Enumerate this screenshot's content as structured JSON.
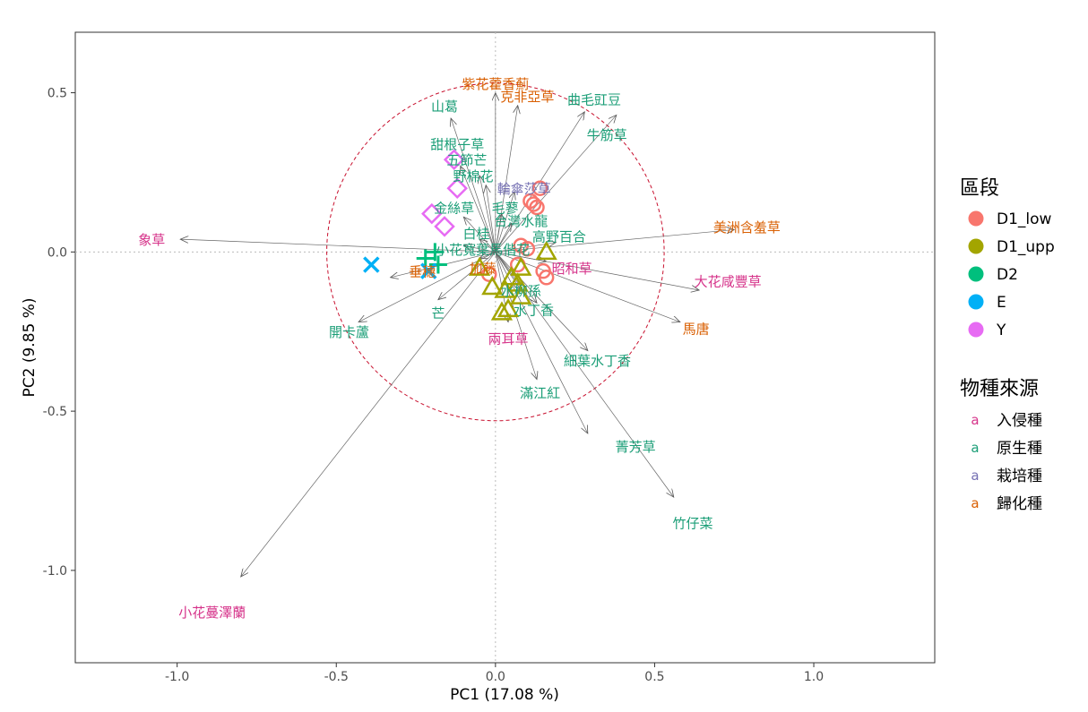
{
  "chart_data": {
    "type": "scatter",
    "subtype": "pca_biplot",
    "xlabel": "PC1 (17.08 %)",
    "ylabel": "PC2 (9.85 %)",
    "xlim": [
      -1.32,
      1.38
    ],
    "ylim": [
      -1.29,
      0.69
    ],
    "x_ticks": [
      -1.0,
      -0.5,
      0.0,
      0.5,
      1.0
    ],
    "y_ticks": [
      0.5,
      0.0,
      -0.5,
      -1.0
    ],
    "x_tick_labels": [
      "-1.0",
      "-0.5",
      "0.0",
      "0.5",
      "1.0"
    ],
    "y_tick_labels": [
      "0.5",
      "0.0",
      "-0.5",
      "-1.0"
    ],
    "circle_radius": 0.53,
    "colors": {
      "D1_low": "#F8766D",
      "D1_upp": "#A3A500",
      "D2": "#00BF7D",
      "E": "#00B0F6",
      "Y": "#E76BF3",
      "invasive": "#D6338A",
      "native": "#1B9E77",
      "cultivated": "#7570B3",
      "naturalized": "#D95F02"
    },
    "legend_groups": {
      "title": "區段",
      "items": [
        {
          "key": "D1_low",
          "label": "D1_low"
        },
        {
          "key": "D1_upp",
          "label": "D1_upp"
        },
        {
          "key": "D2",
          "label": "D2"
        },
        {
          "key": "E",
          "label": "E"
        },
        {
          "key": "Y",
          "label": "Y"
        }
      ]
    },
    "legend_origin": {
      "title": "物種來源",
      "glyph": "a",
      "items": [
        {
          "key": "invasive",
          "label": "入侵種"
        },
        {
          "key": "native",
          "label": "原生種"
        },
        {
          "key": "cultivated",
          "label": "栽培種"
        },
        {
          "key": "naturalized",
          "label": "歸化種"
        }
      ]
    },
    "points": [
      {
        "group": "D1_low",
        "x": 0.14,
        "y": 0.2
      },
      {
        "group": "D1_low",
        "x": 0.11,
        "y": 0.16
      },
      {
        "group": "D1_low",
        "x": 0.12,
        "y": 0.15
      },
      {
        "group": "D1_low",
        "x": 0.13,
        "y": 0.14
      },
      {
        "group": "D1_low",
        "x": 0.08,
        "y": 0.02
      },
      {
        "group": "D1_low",
        "x": 0.1,
        "y": 0.01
      },
      {
        "group": "D1_low",
        "x": 0.15,
        "y": -0.06
      },
      {
        "group": "D1_low",
        "x": 0.16,
        "y": -0.08
      },
      {
        "group": "D1_low",
        "x": -0.02,
        "y": -0.07
      },
      {
        "group": "D1_low",
        "x": 0.07,
        "y": -0.04
      },
      {
        "group": "D1_upp",
        "x": 0.16,
        "y": 0.0
      },
      {
        "group": "D1_upp",
        "x": 0.08,
        "y": -0.05
      },
      {
        "group": "D1_upp",
        "x": 0.07,
        "y": -0.1
      },
      {
        "group": "D1_upp",
        "x": 0.03,
        "y": -0.12
      },
      {
        "group": "D1_upp",
        "x": 0.08,
        "y": -0.14
      },
      {
        "group": "D1_upp",
        "x": -0.01,
        "y": -0.11
      },
      {
        "group": "D1_upp",
        "x": 0.04,
        "y": -0.18
      },
      {
        "group": "D1_upp",
        "x": 0.02,
        "y": -0.19
      },
      {
        "group": "D1_upp",
        "x": 0.05,
        "y": -0.08
      },
      {
        "group": "D1_upp",
        "x": -0.05,
        "y": -0.05
      },
      {
        "group": "D2",
        "x": -0.19,
        "y": 0.0
      },
      {
        "group": "D2",
        "x": -0.18,
        "y": -0.04
      },
      {
        "group": "D2",
        "x": -0.22,
        "y": -0.02
      },
      {
        "group": "E",
        "x": -0.39,
        "y": -0.04
      },
      {
        "group": "E",
        "x": -0.21,
        "y": -0.06
      },
      {
        "group": "Y",
        "x": -0.13,
        "y": 0.29
      },
      {
        "group": "Y",
        "x": -0.12,
        "y": 0.2
      },
      {
        "group": "Y",
        "x": -0.2,
        "y": 0.12
      },
      {
        "group": "Y",
        "x": -0.16,
        "y": 0.08
      }
    ],
    "variables": [
      {
        "name": "紫花藿香薊",
        "origin": "naturalized",
        "x": 0.0,
        "y": 0.5,
        "lx": 0.0,
        "ly": 0.53
      },
      {
        "name": "克非亞草",
        "origin": "naturalized",
        "x": 0.07,
        "y": 0.46,
        "lx": 0.1,
        "ly": 0.49
      },
      {
        "name": "曲毛豇豆",
        "origin": "native",
        "x": 0.28,
        "y": 0.44,
        "lx": 0.31,
        "ly": 0.48
      },
      {
        "name": "山葛",
        "origin": "native",
        "x": -0.14,
        "y": 0.42,
        "lx": -0.16,
        "ly": 0.46
      },
      {
        "name": "牛筋草",
        "origin": "native",
        "x": 0.38,
        "y": 0.43,
        "lx": 0.35,
        "ly": 0.37
      },
      {
        "name": "甜根子草",
        "origin": "native",
        "x": -0.11,
        "y": 0.27,
        "lx": -0.12,
        "ly": 0.34
      },
      {
        "name": "五節芒",
        "origin": "native",
        "x": -0.05,
        "y": 0.24,
        "lx": -0.09,
        "ly": 0.29
      },
      {
        "name": "野棉花",
        "origin": "native",
        "x": -0.03,
        "y": 0.21,
        "lx": -0.07,
        "ly": 0.24
      },
      {
        "name": "輪傘莎草",
        "origin": "cultivated",
        "x": 0.06,
        "y": 0.19,
        "lx": 0.09,
        "ly": 0.2
      },
      {
        "name": "毛蓼",
        "origin": "native",
        "x": 0.02,
        "y": 0.12,
        "lx": 0.03,
        "ly": 0.14
      },
      {
        "name": "金絲草",
        "origin": "native",
        "x": -0.1,
        "y": 0.11,
        "lx": -0.13,
        "ly": 0.14
      },
      {
        "name": "台灣水龍",
        "origin": "native",
        "x": 0.05,
        "y": 0.09,
        "lx": 0.08,
        "ly": 0.1
      },
      {
        "name": "白桂",
        "origin": "native",
        "x": -0.05,
        "y": 0.04,
        "lx": -0.06,
        "ly": 0.06
      },
      {
        "name": "高野百合",
        "origin": "native",
        "x": 0.19,
        "y": 0.03,
        "lx": 0.2,
        "ly": 0.05
      },
      {
        "name": "美洲含羞草",
        "origin": "naturalized",
        "x": 0.75,
        "y": 0.07,
        "lx": 0.79,
        "ly": 0.08
      },
      {
        "name": "象草",
        "origin": "invasive",
        "x": -0.99,
        "y": 0.04,
        "lx": -1.08,
        "ly": 0.04
      },
      {
        "name": "小花寬葉馬偕花",
        "origin": "native",
        "x": -0.1,
        "y": 0.02,
        "lx": -0.04,
        "ly": 0.01
      },
      {
        "name": "昭和草",
        "origin": "invasive",
        "x": 0.16,
        "y": -0.03,
        "lx": 0.24,
        "ly": -0.05
      },
      {
        "name": "大花咸豐草",
        "origin": "invasive",
        "x": 0.64,
        "y": -0.12,
        "lx": 0.73,
        "ly": -0.09
      },
      {
        "name": "馬唐",
        "origin": "naturalized",
        "x": 0.58,
        "y": -0.22,
        "lx": 0.63,
        "ly": -0.24
      },
      {
        "name": "垂穗",
        "origin": "naturalized",
        "x": -0.33,
        "y": -0.08,
        "lx": -0.23,
        "ly": -0.06
      },
      {
        "name": "加藤",
        "origin": "naturalized",
        "x": -0.05,
        "y": -0.02,
        "lx": -0.04,
        "ly": -0.05
      },
      {
        "name": "開卡蘆",
        "origin": "native",
        "x": -0.43,
        "y": -0.22,
        "lx": -0.46,
        "ly": -0.25
      },
      {
        "name": "芒",
        "origin": "native",
        "x": -0.18,
        "y": -0.15,
        "lx": -0.18,
        "ly": -0.19
      },
      {
        "name": "水丁香",
        "origin": "native",
        "x": 0.13,
        "y": -0.16,
        "lx": 0.12,
        "ly": -0.18
      },
      {
        "name": "水柳孫",
        "origin": "native",
        "x": 0.08,
        "y": -0.12,
        "lx": 0.08,
        "ly": -0.12
      },
      {
        "name": "兩耳草",
        "origin": "invasive",
        "x": 0.04,
        "y": -0.22,
        "lx": 0.04,
        "ly": -0.27
      },
      {
        "name": "細葉水丁香",
        "origin": "native",
        "x": 0.29,
        "y": -0.31,
        "lx": 0.32,
        "ly": -0.34
      },
      {
        "name": "滿江紅",
        "origin": "native",
        "x": 0.13,
        "y": -0.4,
        "lx": 0.14,
        "ly": -0.44
      },
      {
        "name": "菁芳草",
        "origin": "native",
        "x": 0.29,
        "y": -0.57,
        "lx": 0.44,
        "ly": -0.61
      },
      {
        "name": "竹仔菜",
        "origin": "native",
        "x": 0.56,
        "y": -0.77,
        "lx": 0.62,
        "ly": -0.85
      },
      {
        "name": "小花蔓澤蘭",
        "origin": "invasive",
        "x": -0.8,
        "y": -1.02,
        "lx": -0.89,
        "ly": -1.13
      }
    ]
  }
}
